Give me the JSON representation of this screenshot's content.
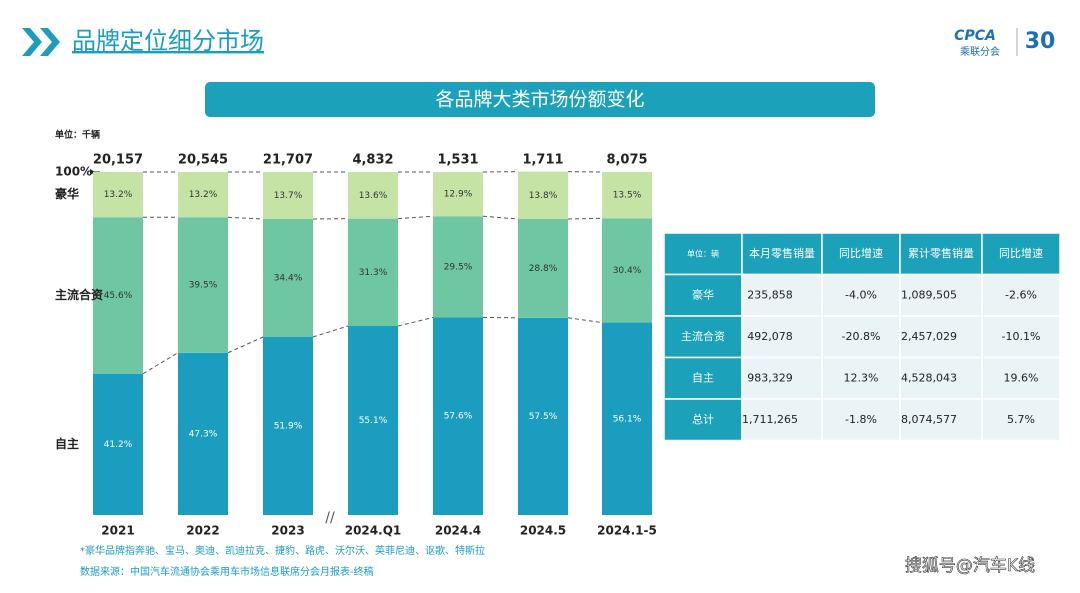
{
  "header": {
    "title": "品牌定位细分市场",
    "logo_name": "CPCA",
    "logo_cn": "乘联分会",
    "logo_anniv": "30"
  },
  "chart_data": {
    "type": "stacked-bar",
    "title": "各品牌大类市场份额变化",
    "unit": "单位：千辆",
    "categories": [
      "2021",
      "2022",
      "2023",
      "2024.Q1",
      "2024.4",
      "2024.5",
      "2024.1-5"
    ],
    "ylim": [
      0,
      100
    ],
    "yticks": [
      {
        "value": 100,
        "label": "100%"
      }
    ],
    "totals": {
      "values": [
        20157,
        20545,
        21707,
        4832,
        1531,
        1711,
        8075
      ],
      "value_labels": [
        "20,157",
        "20,545",
        "21,707",
        "4,832",
        "1,531",
        "1,711",
        "8,075"
      ]
    },
    "series": [
      {
        "name": "自主",
        "color": "#1b9dc0",
        "values": [
          41.2,
          47.3,
          51.9,
          55.1,
          57.6,
          57.5,
          56.1
        ],
        "value_labels": [
          "41.2%",
          "47.3%",
          "51.9%",
          "55.1%",
          "57.6%",
          "57.5%",
          "56.1%"
        ]
      },
      {
        "name": "主流合资",
        "color": "#6fc6a3",
        "values": [
          45.6,
          39.5,
          34.4,
          31.3,
          29.5,
          28.8,
          30.4
        ],
        "value_labels": [
          "45.6%",
          "39.5%",
          "34.4%",
          "31.3%",
          "29.5%",
          "28.8%",
          "30.4%"
        ]
      },
      {
        "name": "豪华",
        "color": "#c6e3a6",
        "values": [
          13.2,
          13.2,
          13.7,
          13.6,
          12.9,
          13.8,
          13.5
        ],
        "value_labels": [
          "13.2%",
          "13.2%",
          "13.7%",
          "13.6%",
          "12.9%",
          "13.8%",
          "13.5%"
        ]
      }
    ],
    "notes": [
      "*豪华品牌指奔驰、宝马、奥迪、凯迪拉克、捷豹、路虎、沃尔沃、英菲尼迪、讴歌、特斯拉",
      "数据来源：中国汽车流通协会乘用车市场信息联席分会月报表-终稿"
    ]
  },
  "table": {
    "header": [
      "单位：辆",
      "本月零售销量",
      "同比增速",
      "累计零售销量",
      "同比增速"
    ],
    "rows": [
      [
        "豪华",
        "235,858",
        "-4.0%",
        "1,089,505",
        "-2.6%"
      ],
      [
        "主流合资",
        "492,078",
        "-20.8%",
        "2,457,029",
        "-10.1%"
      ],
      [
        "自主",
        "983,329",
        "12.3%",
        "4,528,043",
        "19.6%"
      ],
      [
        "总计",
        "1,711,265",
        "-1.8%",
        "8,074,577",
        "5.7%"
      ]
    ]
  },
  "watermark": "搜狐号@汽车K线"
}
